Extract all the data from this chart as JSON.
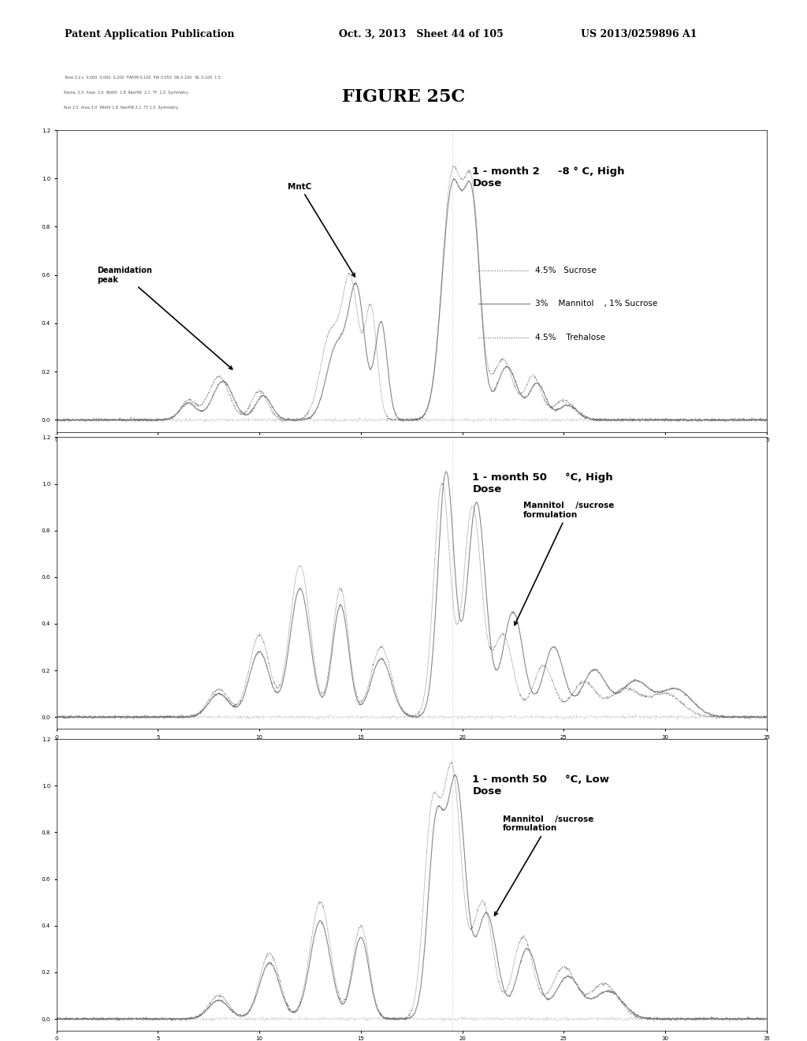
{
  "title": "FIGURE 25C",
  "header_left": "Patent Application Publication",
  "header_mid": "Oct. 3, 2013   Sheet 44 of 105",
  "header_right": "US 2013/0259896 A1",
  "panel1_label": "1 - month 2     -8 ° C, High\nDose",
  "panel2_label": "1 - month 50     °C, High\nDose",
  "panel3_label": "1 - month 50     °C, Low\nDose",
  "legend1_line1": "4.5%   Sucrose",
  "legend1_line2": "3%    Mannitol    , 1% Sucrose",
  "legend1_line3": "4.5%    Trehalose",
  "annotation1a": "MntC",
  "annotation1b": "Deamidation\npeak",
  "annotation2": "Mannitol    /sucrose\nformulation",
  "annotation3": "Mannitol    /sucrose\nformulation",
  "bg_color": "#ffffff",
  "panel_bg": "#f8f8f8",
  "line_color_dotted": "#555555",
  "line_color_solid": "#888888",
  "line_color_dotted2": "#555555"
}
